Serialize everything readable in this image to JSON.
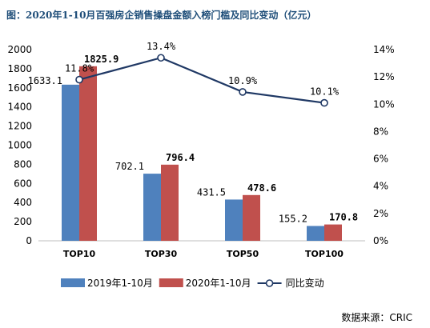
{
  "title": "图：2020年1-10月百强房企销售操盘金额入榜门槛及同比变动（亿元）",
  "source": "数据来源：CRIC",
  "chart_data": {
    "type": "bar",
    "categories": [
      "TOP10",
      "TOP30",
      "TOP50",
      "TOP100"
    ],
    "series": [
      {
        "name": "2019年1-10月",
        "kind": "bar",
        "axis": "left",
        "color": "#4f81bd",
        "values": [
          1633.1,
          702.1,
          431.5,
          155.2
        ],
        "labels": [
          "1633.1",
          "702.1",
          "431.5",
          "155.2"
        ]
      },
      {
        "name": "2020年1-10月",
        "kind": "bar",
        "axis": "left",
        "color": "#c0504d",
        "values": [
          1825.9,
          796.4,
          478.6,
          170.8
        ],
        "labels": [
          "1825.9",
          "796.4",
          "478.6",
          "170.8"
        ]
      },
      {
        "name": "同比变动",
        "kind": "line",
        "axis": "right",
        "color": "#1f3864",
        "values": [
          11.8,
          13.4,
          10.9,
          10.1
        ],
        "labels": [
          "11.8%",
          "13.4%",
          "10.9%",
          "10.1%"
        ]
      }
    ],
    "ylim": [
      0,
      2000
    ],
    "yticks": [
      "0",
      "200",
      "400",
      "600",
      "800",
      "1000",
      "1200",
      "1400",
      "1600",
      "1800",
      "2000"
    ],
    "y2lim": [
      0,
      14
    ],
    "y2ticks": [
      "0%",
      "2%",
      "4%",
      "6%",
      "8%",
      "10%",
      "12%",
      "14%"
    ],
    "legend_position": "bottom",
    "grid": false
  }
}
